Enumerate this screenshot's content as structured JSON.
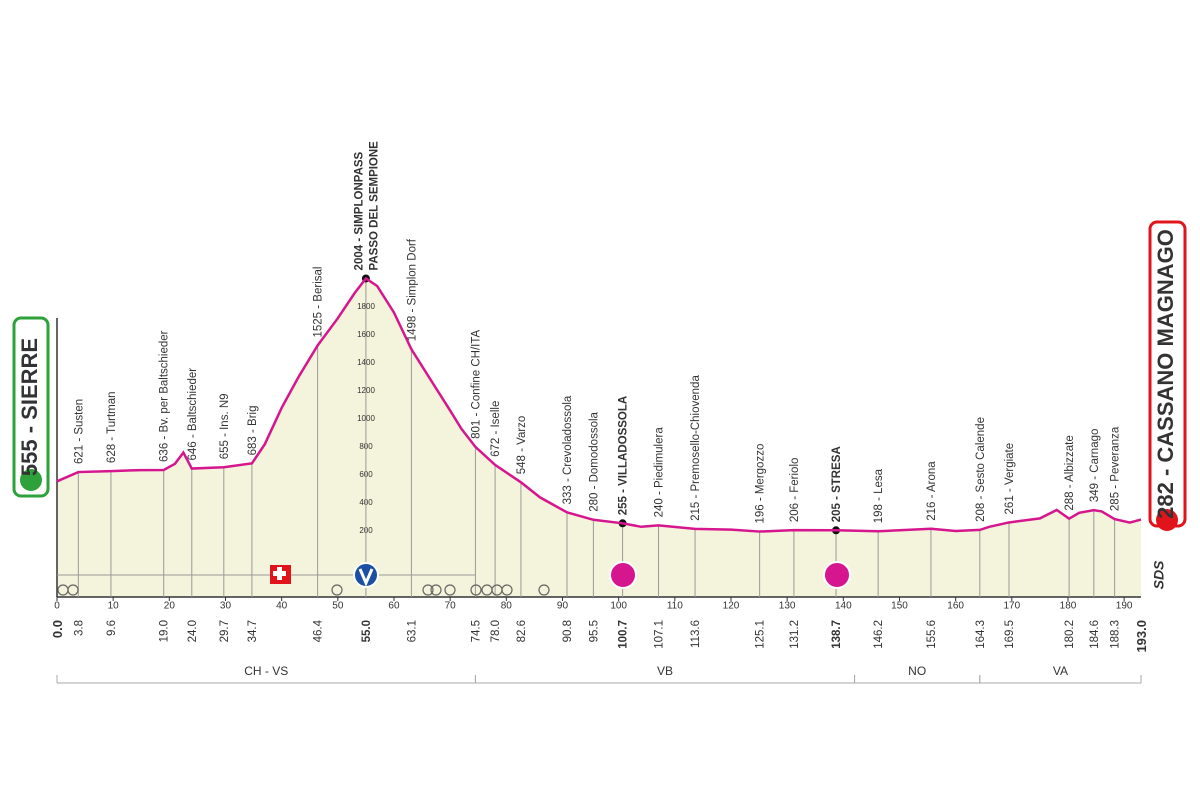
{
  "chart_data": {
    "type": "area",
    "color": "#d6168e",
    "fill": "#f3f4db",
    "x": [
      0,
      3.8,
      9.6,
      15,
      19.0,
      21,
      22.5,
      24.0,
      29.7,
      34.7,
      37,
      40,
      43,
      46.4,
      50,
      53,
      55.0,
      57,
      60,
      63.1,
      67,
      70,
      72,
      74.5,
      78.0,
      82.6,
      86,
      90.8,
      95.5,
      100.7,
      104,
      107.1,
      113.6,
      120,
      125.1,
      131.2,
      138.7,
      146.2,
      150,
      155.6,
      160,
      164.3,
      166,
      169.5,
      175,
      178,
      180.2,
      182,
      184.6,
      186,
      188.3,
      191,
      193.0
    ],
    "values": [
      555,
      621,
      628,
      635,
      636,
      680,
      760,
      646,
      655,
      683,
      820,
      1080,
      1300,
      1525,
      1720,
      1900,
      2004,
      1950,
      1760,
      1498,
      1250,
      1060,
      930,
      801,
      672,
      548,
      440,
      333,
      280,
      255,
      230,
      240,
      215,
      210,
      196,
      206,
      205,
      198,
      205,
      216,
      200,
      208,
      230,
      261,
      290,
      350,
      288,
      330,
      349,
      340,
      285,
      260,
      282
    ],
    "xlim": [
      0,
      193
    ],
    "ylim": [
      0,
      2100
    ],
    "xticks": [
      0,
      10,
      20,
      30,
      40,
      50,
      60,
      70,
      80,
      90,
      100,
      110,
      120,
      130,
      140,
      150,
      160,
      170,
      180,
      190
    ],
    "yticks": [
      200,
      400,
      600,
      800,
      1000,
      1200,
      1400,
      1600,
      1800
    ],
    "start": {
      "label": "555 - SIERRE",
      "km": {
        "value": 0,
        "label": "0.0"
      }
    },
    "finish": {
      "label": "282 - CASSANO MAGNAGO",
      "km": {
        "value": 193,
        "label": "193.0"
      }
    },
    "logo": "SDS",
    "waypoints": [
      {
        "km": 3.8,
        "label": "621 - Susten"
      },
      {
        "km": 9.6,
        "label": "628 - Turtman"
      },
      {
        "km": {
          "value": 19,
          "label": "19.0"
        },
        "label": "636 - Bv. per Baltschieder"
      },
      {
        "km": {
          "value": 24,
          "label": "24.0"
        },
        "label": "646 - Baltschieder"
      },
      {
        "km": 29.7,
        "label": "655 - Ins. N9"
      },
      {
        "km": 34.7,
        "label": "683 - Brig"
      },
      {
        "km": 46.4,
        "label": "1525 - Berisal"
      },
      {
        "km": {
          "value": 55,
          "label": "55.0"
        },
        "label": [
          "2004 - SIMPLONPASS",
          "PASSO DEL SEMPIONE"
        ],
        "bold": true
      },
      {
        "km": 63.1,
        "label": "1498 - Simplon Dorf"
      },
      {
        "km": 74.5,
        "label": "801 - Confine CH/ITA"
      },
      {
        "km": {
          "value": 78,
          "label": "78.0"
        },
        "label": "672 - Iselle"
      },
      {
        "km": 82.6,
        "label": "548 - Varzo"
      },
      {
        "km": 90.8,
        "label": "333 - Crevoladossola"
      },
      {
        "km": 95.5,
        "label": "280 - Domodossola"
      },
      {
        "km": 100.7,
        "label": "255 - VILLADOSSOLA",
        "bold": true
      },
      {
        "km": 107.1,
        "label": "240 - Piedimulera"
      },
      {
        "km": 113.6,
        "label": "215 - Premosello-Chiovenda"
      },
      {
        "km": 125.1,
        "label": "196 - Mergozzo"
      },
      {
        "km": 131.2,
        "label": "206 - Feriolo"
      },
      {
        "km": 138.7,
        "label": "205 - STRESA",
        "bold": true
      },
      {
        "km": 146.2,
        "label": "198 - Lesa"
      },
      {
        "km": 155.6,
        "label": "216 - Arona"
      },
      {
        "km": 164.3,
        "label": "208 - Sesto Calende"
      },
      {
        "km": 169.5,
        "label": "261 - Vergiate"
      },
      {
        "km": 180.2,
        "label": "288 - Albizzate"
      },
      {
        "km": 184.6,
        "label": "349 - Carnago"
      },
      {
        "km": 188.3,
        "label": "285 - Peveranza"
      }
    ],
    "regions": [
      {
        "name": "CH - VS",
        "from": 0,
        "to": 74.5
      },
      {
        "name": "VB",
        "from": 74.5,
        "to": 142
      },
      {
        "name": "NO",
        "from": 142,
        "to": 164.3
      },
      {
        "name": "VA",
        "from": 164.3,
        "to": 193
      }
    ]
  }
}
